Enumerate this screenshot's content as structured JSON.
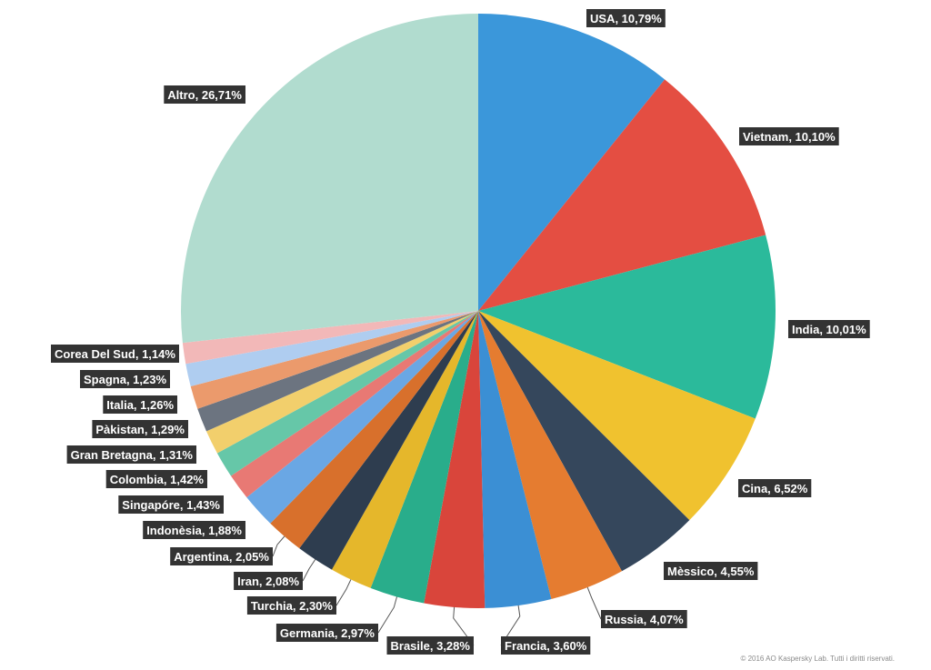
{
  "chart_data": {
    "type": "pie",
    "start": "12 o'clock",
    "direction": "clockwise",
    "title": "",
    "slices": [
      {
        "name": "USA",
        "value": 10.79,
        "label": "USA, 10,79%",
        "color": "#3b97da"
      },
      {
        "name": "Vietnam",
        "value": 10.1,
        "label": "Vietnam, 10,10%",
        "color": "#e44e42"
      },
      {
        "name": "India",
        "value": 10.01,
        "label": "India, 10,01%",
        "color": "#2bba9b"
      },
      {
        "name": "Cina",
        "value": 6.52,
        "label": "Cina, 6,52%",
        "color": "#f0c22f"
      },
      {
        "name": "Mèssico",
        "value": 4.55,
        "label": "Mèssico, 4,55%",
        "color": "#35475c"
      },
      {
        "name": "Russia",
        "value": 4.07,
        "label": "Russia, 4,07%",
        "color": "#e57c30"
      },
      {
        "name": "Francia",
        "value": 3.6,
        "label": "Francia, 3,60%",
        "color": "#3b8fd4"
      },
      {
        "name": "Brasile",
        "value": 3.28,
        "label": "Brasile, 3,28%",
        "color": "#d9453b"
      },
      {
        "name": "Germania",
        "value": 2.97,
        "label": "Germania, 2,97%",
        "color": "#29ad8b"
      },
      {
        "name": "Turchia",
        "value": 2.3,
        "label": "Turchia, 2,30%",
        "color": "#e5b72b"
      },
      {
        "name": "Iran",
        "value": 2.08,
        "label": "Iran, 2,08%",
        "color": "#2e3d4f"
      },
      {
        "name": "Argentina",
        "value": 2.05,
        "label": "Argentina, 2,05%",
        "color": "#d8702c"
      },
      {
        "name": "Indonèsia",
        "value": 1.88,
        "label": "Indonèsia, 1,88%",
        "color": "#6aa7e4"
      },
      {
        "name": "Singapóre",
        "value": 1.43,
        "label": "Singapóre, 1,43%",
        "color": "#e87974"
      },
      {
        "name": "Colombia",
        "value": 1.42,
        "label": "Colombia, 1,42%",
        "color": "#66c7a8"
      },
      {
        "name": "Gran Bretagna",
        "value": 1.31,
        "label": "Gran Bretagna, 1,31%",
        "color": "#f2cf6c"
      },
      {
        "name": "Pàkistan",
        "value": 1.29,
        "label": "Pàkistan, 1,29%",
        "color": "#6c7480"
      },
      {
        "name": "Italia",
        "value": 1.26,
        "label": "Italia, 1,26%",
        "color": "#eb9a6c"
      },
      {
        "name": "Spagna",
        "value": 1.23,
        "label": "Spagna, 1,23%",
        "color": "#afcdf0"
      },
      {
        "name": "Corea Del Sud",
        "value": 1.14,
        "label": "Corea Del Sud, 1,14%",
        "color": "#f2b8b8"
      },
      {
        "name": "Altro",
        "value": 26.71,
        "label": "Altro, 26,71%",
        "color": "#b1dccf"
      }
    ]
  },
  "copyright": "© 2016 AO Kaspersky Lab. Tutti i diritti riservati."
}
